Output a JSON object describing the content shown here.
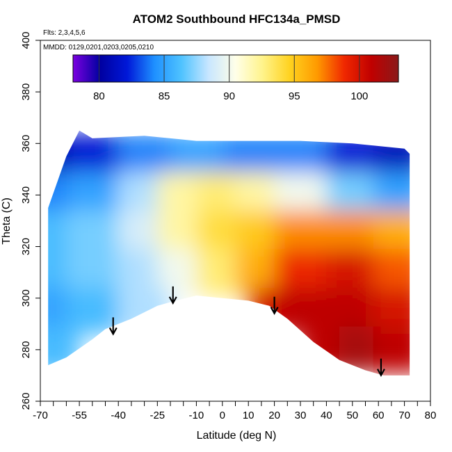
{
  "chart_data": {
    "type": "heatmap",
    "title": "ATOM2 Southbound HFC134a_PMSD",
    "annotations": {
      "flights": "Flts: 2,3,4,5,6",
      "dates": "MMDD: 0129,0201,0203,0205,0210"
    },
    "xlabel": "Latitude (deg N)",
    "ylabel": "Theta (C)",
    "xlim": [
      -70,
      80
    ],
    "ylim": [
      260,
      400
    ],
    "x_ticks": [
      -70,
      -55,
      -40,
      -25,
      -10,
      0,
      10,
      20,
      30,
      40,
      50,
      60,
      70,
      80
    ],
    "y_ticks": [
      260,
      280,
      300,
      320,
      340,
      360,
      380,
      400
    ],
    "colorbar": {
      "min": 78,
      "max": 103,
      "ticks": [
        80,
        85,
        90,
        95,
        100
      ],
      "colors": [
        "#7b00e0",
        "#0000a0",
        "#0018d8",
        "#1e90ff",
        "#4fc3ff",
        "#c8e6ff",
        "#ffffe8",
        "#fff38a",
        "#ffd21f",
        "#ff9a00",
        "#f02800",
        "#c00000",
        "#8a1a1a"
      ]
    },
    "field": {
      "lat_range": [
        -67,
        72
      ],
      "top_boundary": [
        [
          -67,
          335
        ],
        [
          -60,
          355
        ],
        [
          -55,
          365
        ],
        [
          -50,
          362
        ],
        [
          -30,
          363
        ],
        [
          -10,
          361
        ],
        [
          10,
          361
        ],
        [
          30,
          361
        ],
        [
          50,
          360
        ],
        [
          60,
          359
        ],
        [
          70,
          358
        ],
        [
          72,
          356
        ]
      ],
      "floor_boundary": [
        [
          -67,
          274
        ],
        [
          -60,
          277
        ],
        [
          -50,
          284
        ],
        [
          -45,
          288
        ],
        [
          -35,
          292
        ],
        [
          -25,
          297
        ],
        [
          -18,
          299
        ],
        [
          -10,
          301
        ],
        [
          0,
          300
        ],
        [
          10,
          299
        ],
        [
          18,
          297
        ],
        [
          25,
          292
        ],
        [
          35,
          283
        ],
        [
          45,
          276
        ],
        [
          55,
          272
        ],
        [
          62,
          270
        ],
        [
          72,
          270
        ]
      ],
      "cells": [
        {
          "lat": -65,
          "theta": 355,
          "value": 80
        },
        {
          "lat": -50,
          "theta": 355,
          "value": 82
        },
        {
          "lat": -30,
          "theta": 355,
          "value": 84
        },
        {
          "lat": -10,
          "theta": 355,
          "value": 85
        },
        {
          "lat": 10,
          "theta": 355,
          "value": 84
        },
        {
          "lat": 30,
          "theta": 355,
          "value": 84
        },
        {
          "lat": 50,
          "theta": 355,
          "value": 82
        },
        {
          "lat": 68,
          "theta": 355,
          "value": 81
        },
        {
          "lat": -65,
          "theta": 340,
          "value": 84
        },
        {
          "lat": -50,
          "theta": 340,
          "value": 85
        },
        {
          "lat": -30,
          "theta": 340,
          "value": 88
        },
        {
          "lat": -15,
          "theta": 340,
          "value": 92
        },
        {
          "lat": 0,
          "theta": 340,
          "value": 93
        },
        {
          "lat": 15,
          "theta": 340,
          "value": 92
        },
        {
          "lat": 30,
          "theta": 340,
          "value": 90
        },
        {
          "lat": 50,
          "theta": 340,
          "value": 87
        },
        {
          "lat": 68,
          "theta": 340,
          "value": 85
        },
        {
          "lat": -65,
          "theta": 325,
          "value": 86
        },
        {
          "lat": -50,
          "theta": 325,
          "value": 87
        },
        {
          "lat": -30,
          "theta": 325,
          "value": 89
        },
        {
          "lat": -15,
          "theta": 325,
          "value": 92
        },
        {
          "lat": 0,
          "theta": 325,
          "value": 94
        },
        {
          "lat": 15,
          "theta": 325,
          "value": 95
        },
        {
          "lat": 30,
          "theta": 325,
          "value": 97
        },
        {
          "lat": 50,
          "theta": 325,
          "value": 97
        },
        {
          "lat": 68,
          "theta": 325,
          "value": 96
        },
        {
          "lat": -65,
          "theta": 310,
          "value": 86
        },
        {
          "lat": -50,
          "theta": 310,
          "value": 87
        },
        {
          "lat": -30,
          "theta": 310,
          "value": 88
        },
        {
          "lat": -15,
          "theta": 310,
          "value": 90
        },
        {
          "lat": 0,
          "theta": 310,
          "value": 93
        },
        {
          "lat": 15,
          "theta": 310,
          "value": 96
        },
        {
          "lat": 30,
          "theta": 310,
          "value": 99
        },
        {
          "lat": 50,
          "theta": 310,
          "value": 100
        },
        {
          "lat": 68,
          "theta": 310,
          "value": 98
        },
        {
          "lat": -65,
          "theta": 295,
          "value": 85
        },
        {
          "lat": -50,
          "theta": 295,
          "value": 86
        },
        {
          "lat": -30,
          "theta": 295,
          "value": 88
        },
        {
          "lat": 20,
          "theta": 295,
          "value": 100
        },
        {
          "lat": 30,
          "theta": 295,
          "value": 101
        },
        {
          "lat": 50,
          "theta": 295,
          "value": 101
        },
        {
          "lat": 68,
          "theta": 295,
          "value": 100
        },
        {
          "lat": -65,
          "theta": 280,
          "value": 86
        },
        {
          "lat": 40,
          "theta": 280,
          "value": 101
        },
        {
          "lat": 55,
          "theta": 280,
          "value": 102
        },
        {
          "lat": 68,
          "theta": 280,
          "value": 101
        }
      ]
    },
    "arrows": [
      {
        "lat": -42,
        "theta": 292
      },
      {
        "lat": -19,
        "theta": 304
      },
      {
        "lat": 20,
        "theta": 300
      },
      {
        "lat": 61,
        "theta": 276
      }
    ]
  }
}
